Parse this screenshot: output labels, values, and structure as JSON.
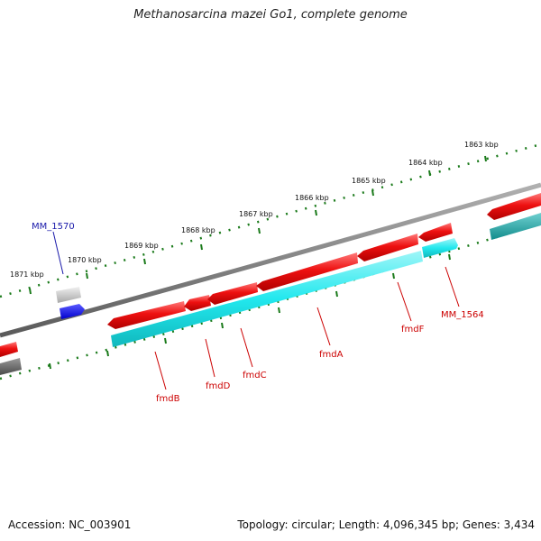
{
  "title": "Methanosarcina mazei Go1, complete genome",
  "footer": {
    "accession": "Accession: NC_003901",
    "summary": "Topology: circular; Length: 4,096,345 bp; Genes: 3,434"
  },
  "colors": {
    "forward_gene": "#ee1111",
    "reverse_gene": "#22e8ee",
    "highlight_gene": "#1a1aee",
    "backbone": "#7a7a7a",
    "scale_dots": "#1a7a1a",
    "label_red": "#cc0000",
    "label_blue": "#1a1aaa"
  },
  "scale_labels": [
    "1863 kbp",
    "1864 kbp",
    "1865 kbp",
    "1866 kbp",
    "1867 kbp",
    "1868 kbp",
    "1869 kbp",
    "1870 kbp",
    "1871 kbp"
  ],
  "gene_labels": [
    "MM_1570",
    "fmdB",
    "fmdD",
    "fmdC",
    "fmdA",
    "fmdF",
    "MM_1564"
  ]
}
